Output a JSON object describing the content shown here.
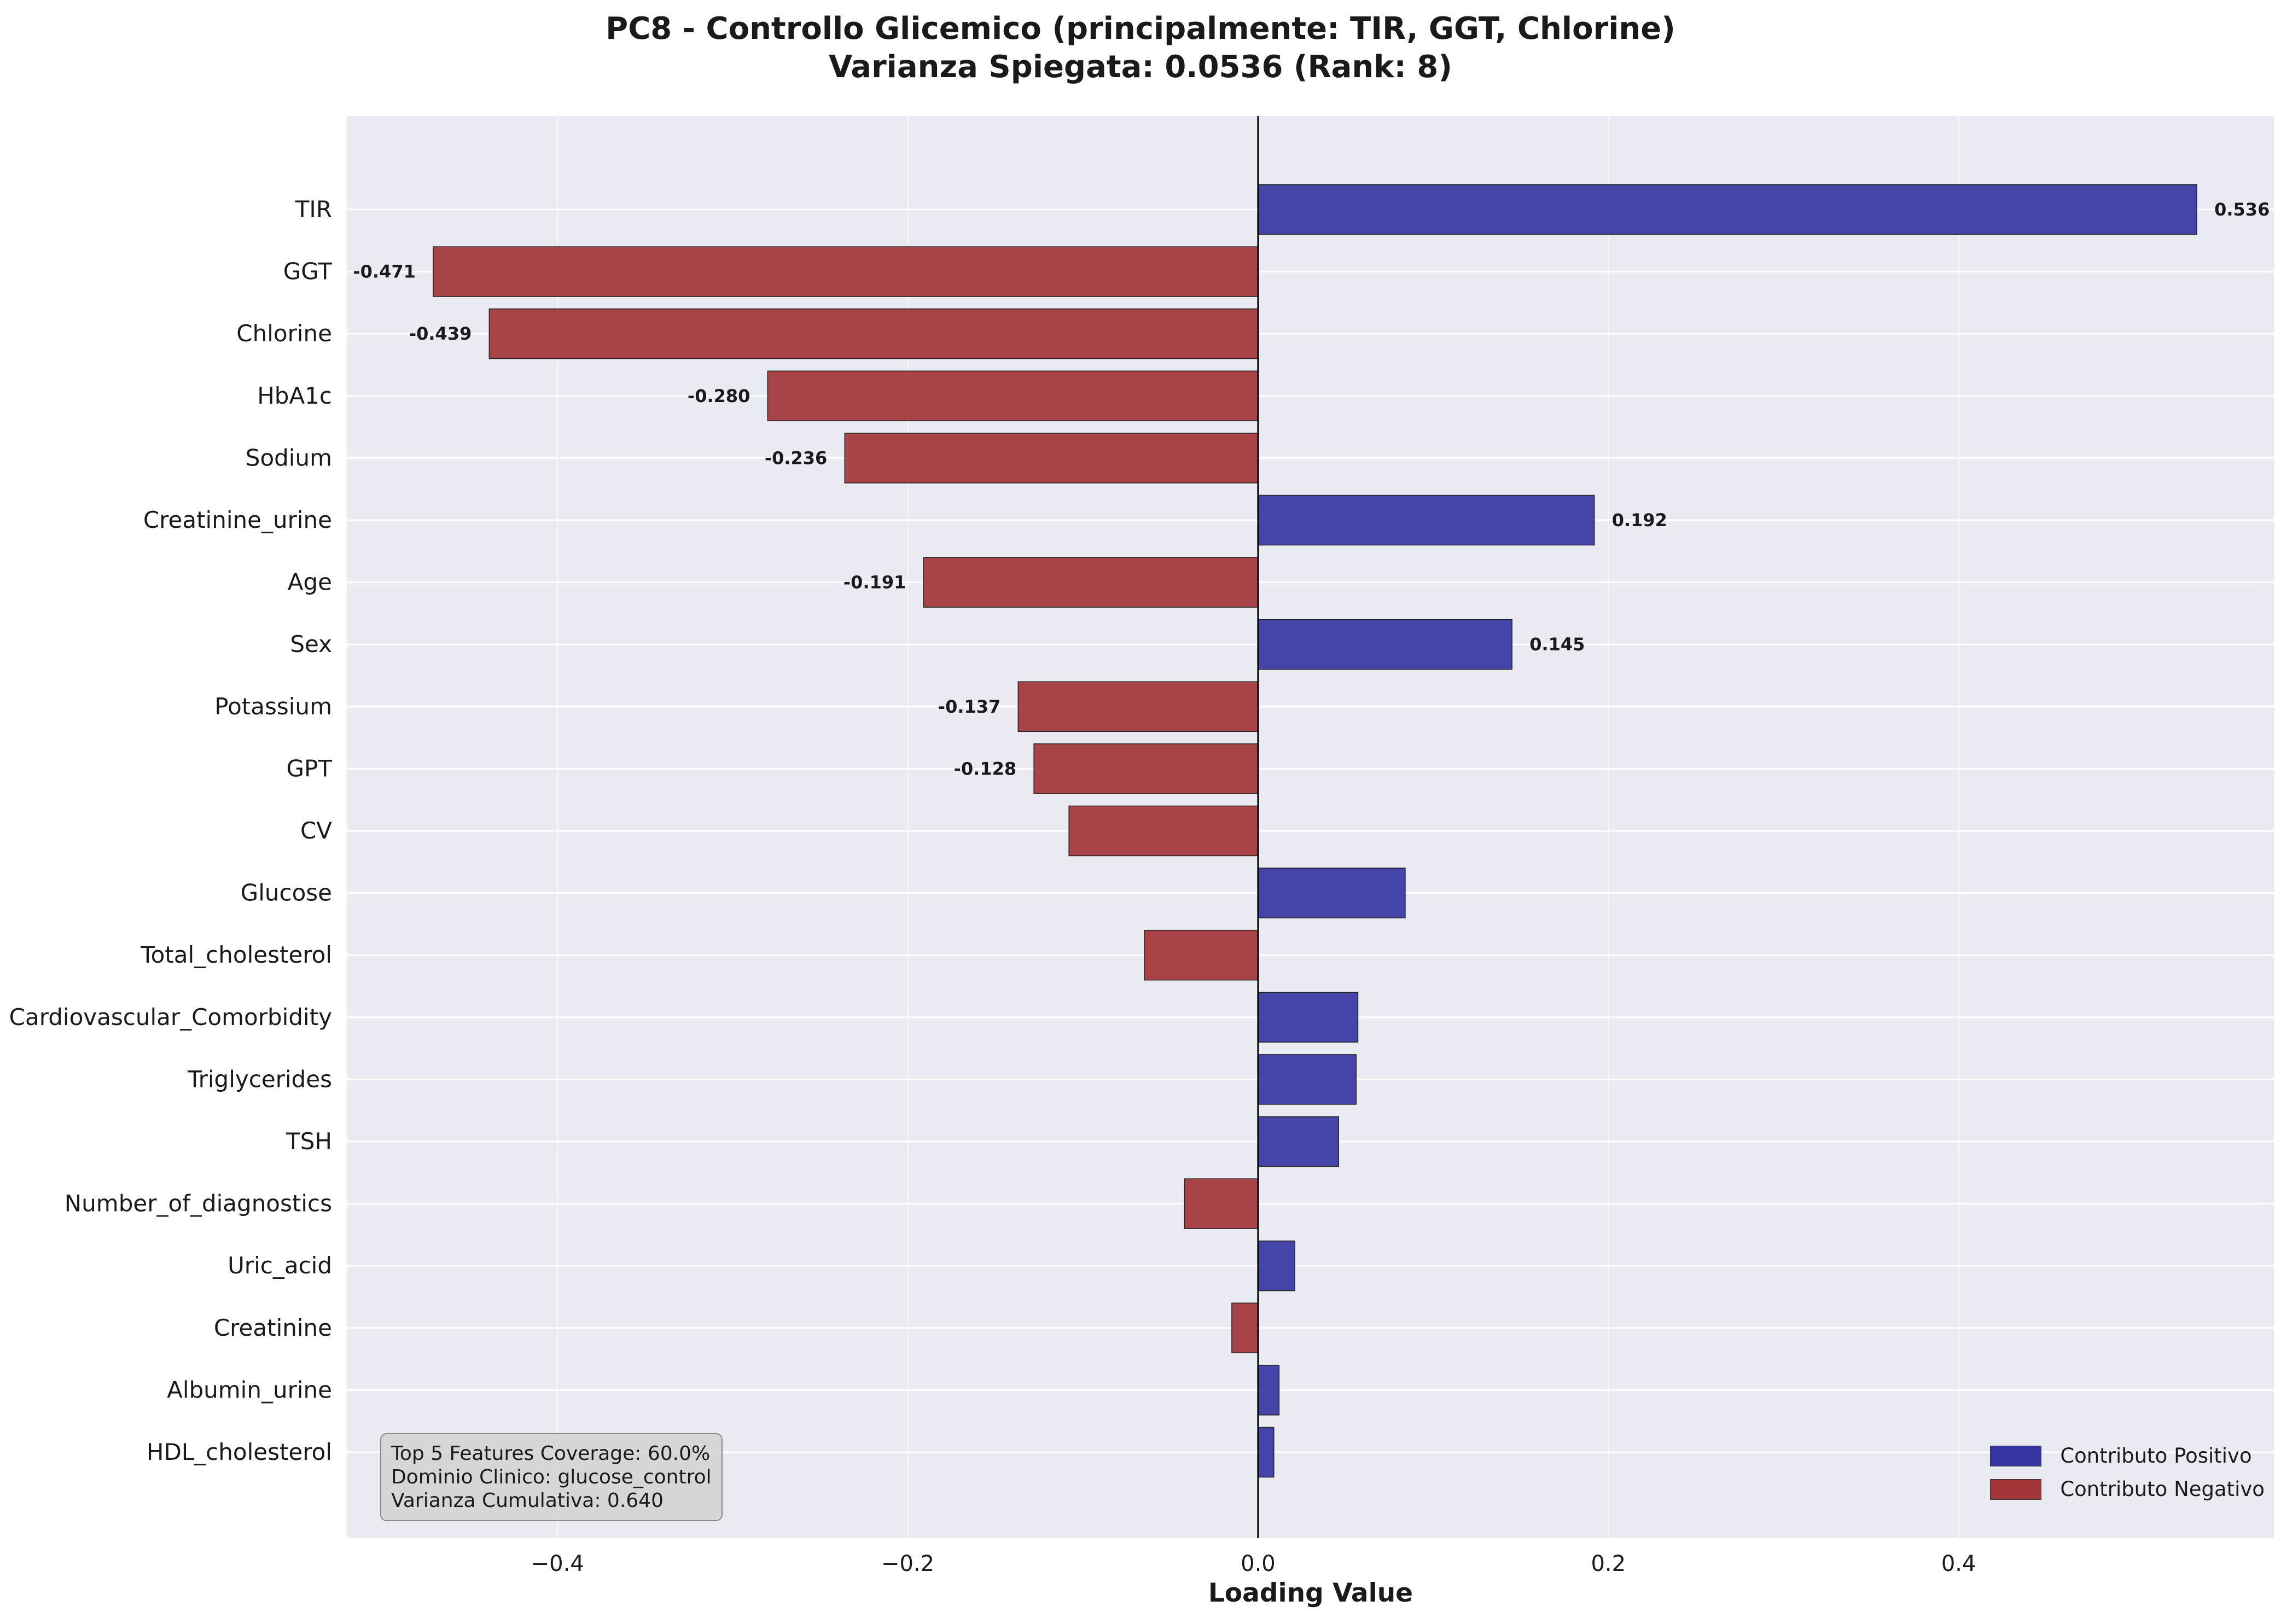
{
  "title": {
    "line1": "PC8 - Controllo Glicemico (principalmente: TIR, GGT, Chlorine)",
    "line2": "Varianza Spiegata: 0.0536 (Rank: 8)"
  },
  "info_box": {
    "line1": "Top 5 Features Coverage: 60.0%",
    "line2": "Dominio Clinico: glucose_control",
    "line3": "Varianza Cumulativa: 0.640"
  },
  "legend": {
    "positive": "Contributo Positivo",
    "negative": "Contributo Negativo",
    "placement": "lower-right"
  },
  "colors": {
    "positive": "#3636a3",
    "negative": "#a23538",
    "background": "#eaeaf2",
    "grid": "#ffffff"
  },
  "chart_data": {
    "type": "bar",
    "orientation": "horizontal",
    "xlabel": "Loading Value",
    "ylabel": "",
    "xlim": [
      -0.52,
      0.58
    ],
    "xticks": [
      -0.4,
      -0.2,
      0.0,
      0.2,
      0.4
    ],
    "xtick_labels": [
      "−0.4",
      "−0.2",
      "0.0",
      "0.2",
      "0.4"
    ],
    "grid": true,
    "categories": [
      "TIR",
      "GGT",
      "Chlorine",
      "HbA1c",
      "Sodium",
      "Creatinine_urine",
      "Age",
      "Sex",
      "Potassium",
      "GPT",
      "CV",
      "Glucose",
      "Total_cholesterol",
      "Cardiovascular_Comorbidity",
      "Triglycerides",
      "TSH",
      "Number_of_diagnostics",
      "Uric_acid",
      "Creatinine",
      "Albumin_urine",
      "HDL_cholesterol"
    ],
    "values": [
      0.536,
      -0.471,
      -0.439,
      -0.28,
      -0.236,
      0.192,
      -0.191,
      0.145,
      -0.137,
      -0.128,
      -0.108,
      0.084,
      -0.065,
      0.057,
      0.056,
      0.046,
      -0.042,
      0.021,
      -0.015,
      0.012,
      0.009
    ],
    "data_labels": [
      "0.536",
      "-0.471",
      "-0.439",
      "-0.280",
      "-0.236",
      "0.192",
      "-0.191",
      "0.145",
      "-0.137",
      "-0.128",
      "",
      "",
      "",
      "",
      "",
      "",
      "",
      "",
      "",
      "",
      ""
    ]
  }
}
